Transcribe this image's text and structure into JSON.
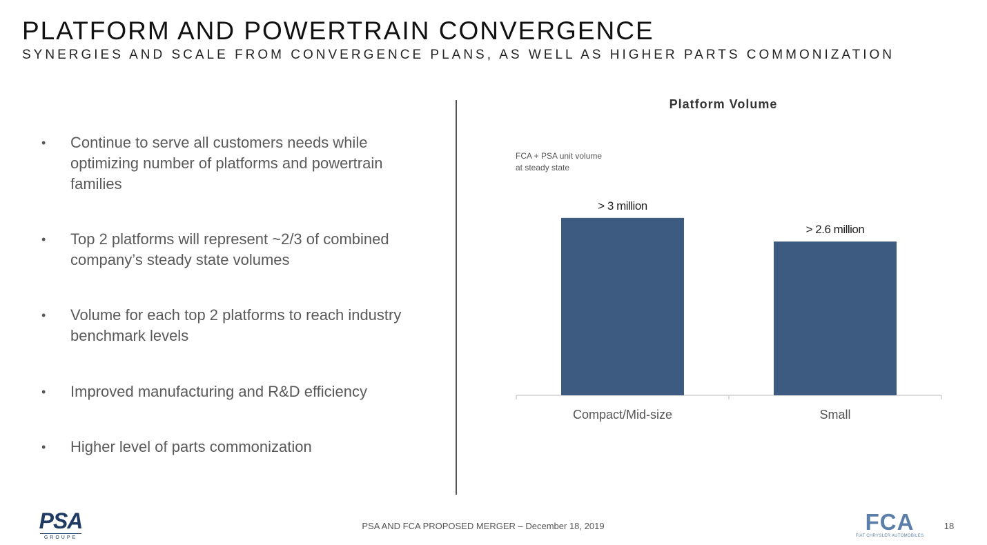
{
  "header": {
    "title": "PLATFORM AND POWERTRAIN CONVERGENCE",
    "subtitle": "SYNERGIES AND SCALE FROM CONVERGENCE PLANS, AS WELL AS HIGHER PARTS COMMONIZATION"
  },
  "bullets": [
    "Continue to serve all customers needs while optimizing number of platforms and powertrain families",
    "Top 2 platforms will represent ~2/3 of combined company’s steady state volumes",
    "Volume for each top 2 platforms to reach industry benchmark levels",
    "Improved manufacturing and R&D efficiency",
    "Higher level of parts commonization"
  ],
  "bullet_symbol": "•",
  "chart_note": {
    "line1": "FCA + PSA unit volume",
    "line2": "at steady state"
  },
  "chart_data": {
    "type": "bar",
    "title": "Platform Volume",
    "categories": [
      "Compact/Mid-size",
      "Small"
    ],
    "values": [
      3.0,
      2.6
    ],
    "data_labels": [
      "> 3 million",
      "> 2.6 million"
    ],
    "xlabel": "",
    "ylabel": "FCA + PSA unit volume at steady state (million)",
    "ylim": [
      0,
      3.5
    ],
    "grid": false,
    "bar_color": "#3d5a80"
  },
  "footer": {
    "text": "PSA AND FCA PROPOSED MERGER – December 18, 2019",
    "page": "18"
  },
  "logos": {
    "psa": "PSA",
    "psa_sub": "GROUPE",
    "fca": "FCA",
    "fca_sub": "FIAT CHRYSLER AUTOMOBILES"
  },
  "colors": {
    "bar": "#3d5a80",
    "brand_psa": "#1f3a63",
    "brand_fca": "#5b7fa8"
  }
}
